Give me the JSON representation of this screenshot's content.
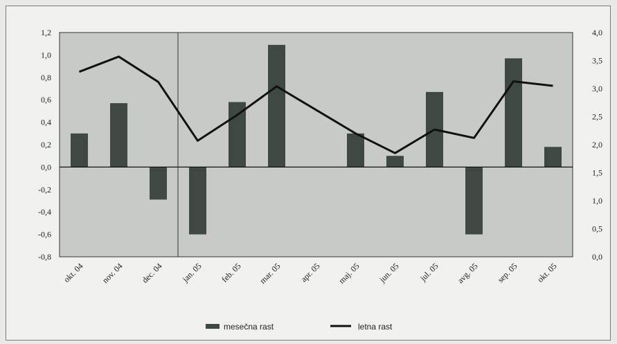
{
  "chart_data": {
    "type": "bar+line",
    "categories": [
      "okt. 04",
      "nov. 04",
      "dec. 04",
      "jan. 05",
      "feb. 05",
      "mar. 05",
      "apr. 05",
      "maj. 05",
      "jun. 05",
      "jul. 05",
      "avg. 05",
      "sep. 05",
      "okt. 05"
    ],
    "series": [
      {
        "name": "mesečna rast",
        "type": "bar",
        "axis": "left",
        "color": "#3f4944",
        "values": [
          0.3,
          0.57,
          -0.29,
          -0.6,
          0.58,
          1.09,
          0.0,
          0.3,
          0.1,
          0.67,
          -0.6,
          0.97,
          0.18
        ]
      },
      {
        "name": "letna rast",
        "type": "line",
        "axis": "right",
        "color": "#111111",
        "values": [
          3.3,
          3.57,
          3.12,
          2.07,
          2.53,
          3.04,
          2.62,
          2.2,
          1.85,
          2.27,
          2.12,
          3.13,
          3.05
        ]
      }
    ],
    "y_left": {
      "min": -0.8,
      "max": 1.2,
      "ticks": [
        "1,2",
        "1,0",
        "0,8",
        "0,6",
        "0,4",
        "0,2",
        "0,0",
        "-0,2",
        "-0,4",
        "-0,6",
        "-0,8"
      ]
    },
    "y_right": {
      "min": 0.0,
      "max": 4.0,
      "ticks": [
        "4,0",
        "3,5",
        "3,0",
        "2,5",
        "2,0",
        "1,5",
        "1,0",
        "0,5",
        "0,0"
      ]
    },
    "plot_background": "#c8cac8",
    "legend_position": "bottom",
    "grid": false
  }
}
